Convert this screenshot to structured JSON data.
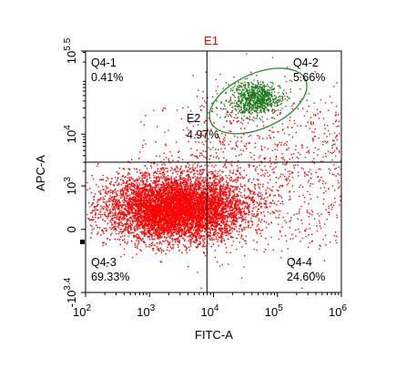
{
  "chart_data": {
    "type": "scatter",
    "title": "E1",
    "xlabel": "FITC-A",
    "ylabel": "APC-A",
    "x_scale": "log",
    "y_scale": "biexponential",
    "xlim": [
      100,
      1000000
    ],
    "x_ticks": [
      {
        "value": 100,
        "base": "10",
        "exp": "2"
      },
      {
        "value": 1000,
        "base": "10",
        "exp": "3"
      },
      {
        "value": 10000,
        "base": "10",
        "exp": "4"
      },
      {
        "value": 100000,
        "base": "10",
        "exp": "5"
      },
      {
        "value": 1000000,
        "base": "10",
        "exp": "6"
      }
    ],
    "y_ticks": [
      {
        "value": -2512,
        "base": "-10",
        "exp": "3.4"
      },
      {
        "value": 0,
        "base": "0",
        "exp": ""
      },
      {
        "value": 1000,
        "base": "10",
        "exp": "3"
      },
      {
        "value": 10000,
        "base": "10",
        "exp": "4"
      },
      {
        "value": 316228,
        "base": "10",
        "exp": "5.5"
      }
    ],
    "quadrant_gate": {
      "x": 7900,
      "y": 3000
    },
    "quadrants": [
      {
        "id": "Q4-1",
        "label": "Q4-1",
        "percent": "0.41%",
        "position": "top-left"
      },
      {
        "id": "Q4-2",
        "label": "Q4-2",
        "percent": "5.66%",
        "position": "top-right"
      },
      {
        "id": "Q4-3",
        "label": "Q4-3",
        "percent": "69.33%",
        "position": "bottom-left"
      },
      {
        "id": "Q4-4",
        "label": "Q4-4",
        "percent": "24.60%",
        "position": "bottom-right"
      }
    ],
    "ellipse_gate": {
      "label": "E2",
      "percent": "4.97%",
      "center_x": 50000,
      "center_y": 40000,
      "color": "#2e8b2e"
    },
    "populations": [
      {
        "name": "",
        "color": "#ff0000",
        "center_x": 2500,
        "center_y": 300,
        "share": 0.94
      },
      {
        "name": "",
        "color": "#1a7a1a",
        "center_x": 45000,
        "center_y": 45000,
        "share": 0.05
      }
    ],
    "colors": {
      "ungated": "#ff0000",
      "gated": "#1a7a1a",
      "title": "#ff0000",
      "gate_label": "#2e8b2e"
    }
  }
}
